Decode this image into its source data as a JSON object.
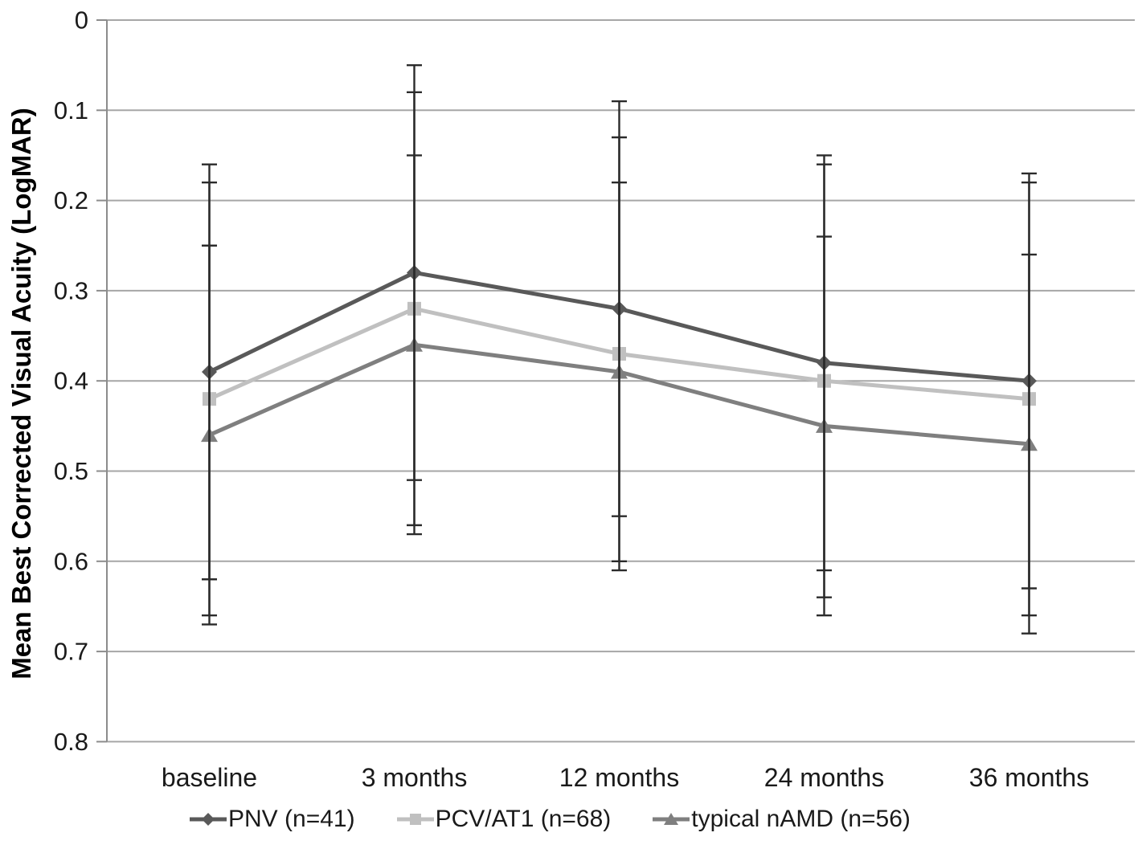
{
  "chart_data": {
    "type": "line",
    "title": "",
    "xlabel": "",
    "ylabel": "Mean Best Corrected Visual Acuity (LogMAR)",
    "categories": [
      "baseline",
      "3 months",
      "12 months",
      "24 months",
      "36 months"
    ],
    "series": [
      {
        "name": "PNV (n=41)",
        "marker": "diamond",
        "color": "#595959",
        "values": [
          0.39,
          0.28,
          0.32,
          0.38,
          0.4
        ],
        "error_minus": [
          0.23,
          0.23,
          0.23,
          0.23,
          0.23
        ],
        "error_plus": [
          0.23,
          0.23,
          0.23,
          0.23,
          0.23
        ]
      },
      {
        "name": "PCV/AT1 (n=68)",
        "marker": "square",
        "color": "#c0c0c0",
        "values": [
          0.42,
          0.32,
          0.37,
          0.4,
          0.42
        ],
        "error_minus": [
          0.24,
          0.24,
          0.24,
          0.24,
          0.24
        ],
        "error_plus": [
          0.24,
          0.24,
          0.24,
          0.24,
          0.24
        ]
      },
      {
        "name": "typical nAMD (n=56)",
        "marker": "triangle",
        "color": "#7f7f7f",
        "values": [
          0.46,
          0.36,
          0.39,
          0.45,
          0.47
        ],
        "error_minus": [
          0.21,
          0.21,
          0.21,
          0.21,
          0.21
        ],
        "error_plus": [
          0.21,
          0.21,
          0.21,
          0.21,
          0.21
        ]
      }
    ],
    "ylim": [
      0,
      0.8
    ],
    "y_tick_step": 0.1,
    "y_tick_labels": [
      "0",
      "0.1",
      "0.2",
      "0.3",
      "0.4",
      "0.5",
      "0.6",
      "0.7",
      "0.8"
    ],
    "y_axis_direction": "inverted: 0 at top, 0.8 at bottom",
    "grid": "horizontal gridlines only",
    "legend_position": "bottom",
    "colors": {
      "error_bar": "#2b2b2b",
      "gridline": "#a6a6a6",
      "axis_line": "#8c8c8c",
      "tick_text": "#1a1a1a",
      "background": "#ffffff"
    }
  }
}
